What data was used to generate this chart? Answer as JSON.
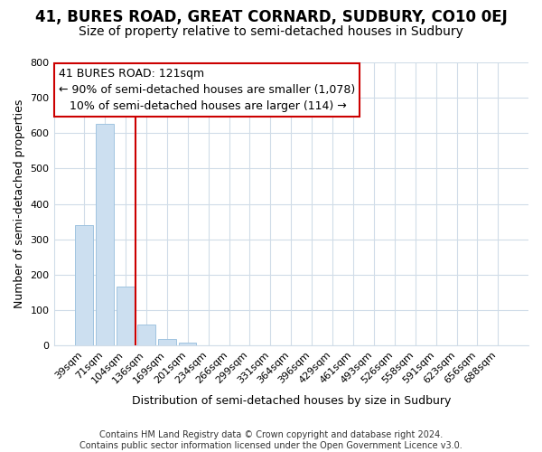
{
  "title": "41, BURES ROAD, GREAT CORNARD, SUDBURY, CO10 0EJ",
  "subtitle": "Size of property relative to semi-detached houses in Sudbury",
  "xlabel": "Distribution of semi-detached houses by size in Sudbury",
  "ylabel": "Number of semi-detached properties",
  "bin_labels": [
    "39sqm",
    "71sqm",
    "104sqm",
    "136sqm",
    "169sqm",
    "201sqm",
    "234sqm",
    "266sqm",
    "299sqm",
    "331sqm",
    "364sqm",
    "396sqm",
    "429sqm",
    "461sqm",
    "493sqm",
    "526sqm",
    "558sqm",
    "591sqm",
    "623sqm",
    "656sqm",
    "688sqm"
  ],
  "bar_values": [
    340,
    625,
    165,
    60,
    18,
    8,
    1,
    0,
    0,
    0,
    0,
    0,
    0,
    0,
    0,
    0,
    0,
    0,
    0,
    0,
    0
  ],
  "bar_color": "#ccdff0",
  "bar_edge_color": "#a0c4e0",
  "vline_color": "#cc0000",
  "vline_x": 2.5,
  "annotation_line1": "41 BURES ROAD: 121sqm",
  "annotation_line2": "← 90% of semi-detached houses are smaller (1,078)",
  "annotation_line3": "   10% of semi-detached houses are larger (114) →",
  "annotation_box_color": "white",
  "annotation_box_edgecolor": "#cc0000",
  "ylim": [
    0,
    800
  ],
  "yticks": [
    0,
    100,
    200,
    300,
    400,
    500,
    600,
    700,
    800
  ],
  "footer_text": "Contains HM Land Registry data © Crown copyright and database right 2024.\nContains public sector information licensed under the Open Government Licence v3.0.",
  "background_color": "#ffffff",
  "plot_bg_color": "#ffffff",
  "grid_color": "#d0dce8",
  "title_fontsize": 12,
  "subtitle_fontsize": 10,
  "xlabel_fontsize": 9,
  "ylabel_fontsize": 9,
  "tick_fontsize": 8,
  "annotation_fontsize": 9,
  "footer_fontsize": 7
}
